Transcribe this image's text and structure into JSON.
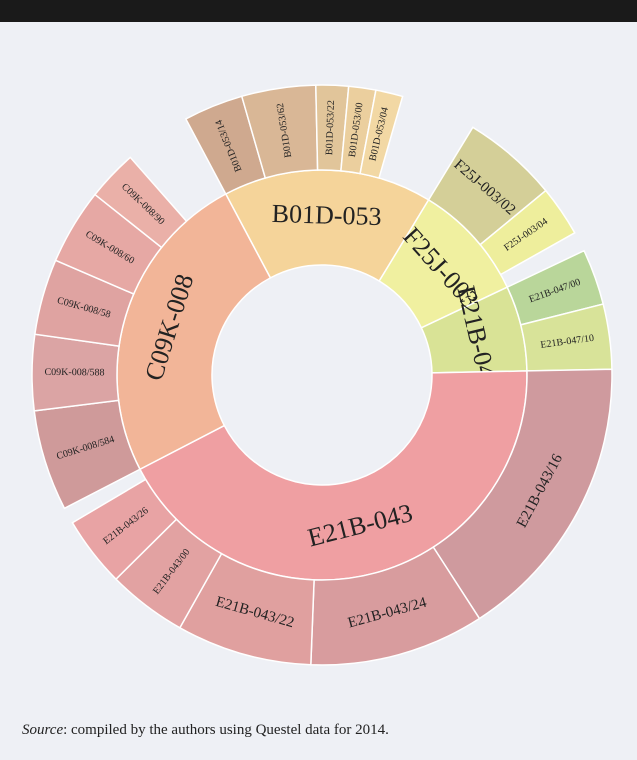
{
  "chart_data": {
    "type": "sunburst",
    "nodes": [
      {
        "name": "B01D-053",
        "value": 16.4,
        "color": "#f5d49a",
        "children": [
          {
            "name": "B01D-053/14",
            "value": 3.3,
            "color": "#cfa98f"
          },
          {
            "name": "B01D-053/62",
            "value": 4.1,
            "color": "#d9b796"
          },
          {
            "name": "B01D-053/22",
            "value": 1.8,
            "color": "#e1c59a"
          },
          {
            "name": "B01D-053/00",
            "value": 1.5,
            "color": "#ebcf9e"
          },
          {
            "name": "B01D-053/04",
            "value": 1.5,
            "color": "#f2d8a4"
          }
        ]
      },
      {
        "name": "F25J-003",
        "value": 9.2,
        "color": "#f0f0a0",
        "children": [
          {
            "name": "F25J-003/02",
            "value": 5.3,
            "color": "#d4cf98"
          },
          {
            "name": "F25J-003/04",
            "value": 2.8,
            "color": "#eeee9c"
          }
        ]
      },
      {
        "name": "E21B-047",
        "value": 6.7,
        "color": "#d9e396",
        "children": [
          {
            "name": "E21B-047/00",
            "value": 3.1,
            "color": "#b9d69a"
          },
          {
            "name": "E21B-047/10",
            "value": 3.6,
            "color": "#d8e399"
          }
        ]
      },
      {
        "name": "E21B-043",
        "value": 42.5,
        "color": "#ef9fa2",
        "children": [
          {
            "name": "E21B-043/16",
            "value": 16.1,
            "color": "#cf9a9e"
          },
          {
            "name": "E21B-043/24",
            "value": 9.7,
            "color": "#d89c9e"
          },
          {
            "name": "E21B-043/22",
            "value": 7.5,
            "color": "#e0a09f"
          },
          {
            "name": "E21B-043/00",
            "value": 4.4,
            "color": "#e2a2a2"
          },
          {
            "name": "E21B-043/26",
            "value": 3.9,
            "color": "#e8a3a4"
          }
        ]
      },
      {
        "name": "C09K-008",
        "value": 24.7,
        "color": "#f2b598",
        "children": [
          {
            "name": "C09K-008/584",
            "value": 5.6,
            "color": "#cf9a9a"
          },
          {
            "name": "C09K-008/588",
            "value": 4.2,
            "color": "#dba4a4"
          },
          {
            "name": "C09K-008/58",
            "value": 4.2,
            "color": "#dfa3a1"
          },
          {
            "name": "C09K-008/60",
            "value": 4.2,
            "color": "#e6a8a4"
          },
          {
            "name": "C09K-008/90",
            "value": 2.8,
            "color": "#eab0a8"
          }
        ]
      }
    ]
  },
  "source_label": "Source",
  "source_text": ": compiled by the authors using Questel data for 2014."
}
